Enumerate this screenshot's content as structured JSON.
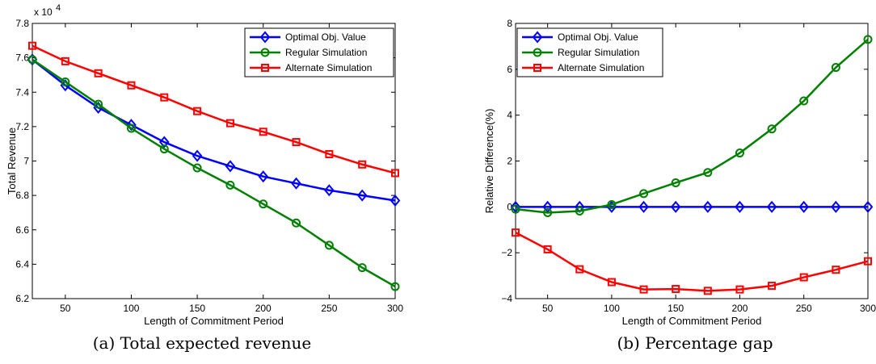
{
  "chart_data": [
    {
      "type": "line",
      "caption": "(a)  Total expected revenue",
      "xlabel": "Length of Commitment Period",
      "ylabel": "Total Revenue",
      "y_multiplier": "x 10",
      "y_multiplier_exp": "4",
      "xlim": [
        25,
        300
      ],
      "ylim": [
        6.2,
        7.8
      ],
      "xticks": [
        50,
        100,
        150,
        200,
        250,
        300
      ],
      "yticks": [
        6.2,
        6.4,
        6.6,
        6.8,
        7,
        7.2,
        7.4,
        7.6,
        7.8
      ],
      "ytick_labels": [
        "6.2",
        "6.4",
        "6.6",
        "6.8",
        "7",
        "7.2",
        "7.4",
        "7.6",
        "7.8"
      ],
      "grid": false,
      "legend_position": "top-right",
      "x": [
        25,
        50,
        75,
        100,
        125,
        150,
        175,
        200,
        225,
        250,
        275,
        300
      ],
      "series": [
        {
          "name": "Optimal Obj. Value",
          "color": "#0000ff",
          "marker": "diamond",
          "values": [
            7.59,
            7.44,
            7.31,
            7.21,
            7.11,
            7.03,
            6.97,
            6.91,
            6.87,
            6.83,
            6.8,
            6.77
          ]
        },
        {
          "name": "Regular Simulation",
          "color": "#008000",
          "marker": "circle",
          "values": [
            7.59,
            7.46,
            7.33,
            7.19,
            7.07,
            6.96,
            6.86,
            6.75,
            6.64,
            6.51,
            6.38,
            6.27
          ]
        },
        {
          "name": "Alternate Simulation",
          "color": "#ff0000",
          "marker": "square",
          "values": [
            7.67,
            7.58,
            7.51,
            7.44,
            7.37,
            7.29,
            7.22,
            7.17,
            7.11,
            7.04,
            6.98,
            6.93
          ]
        }
      ]
    },
    {
      "type": "line",
      "caption": "(b)  Percentage gap",
      "xlabel": "Length of Commitment Period",
      "ylabel": "Relative Difference(%)",
      "xlim": [
        25,
        300
      ],
      "ylim": [
        -4,
        8
      ],
      "xticks": [
        50,
        100,
        150,
        200,
        250,
        300
      ],
      "yticks": [
        -4,
        -2,
        0,
        2,
        4,
        6,
        8
      ],
      "ytick_labels": [
        "−4",
        "−2",
        "0",
        "2",
        "4",
        "6",
        "8"
      ],
      "grid": false,
      "legend_position": "top-left",
      "x": [
        25,
        50,
        75,
        100,
        125,
        150,
        175,
        200,
        225,
        250,
        275,
        300
      ],
      "series": [
        {
          "name": "Optimal Obj. Value",
          "color": "#0000ff",
          "marker": "diamond",
          "values": [
            0,
            0,
            0,
            0,
            0,
            0,
            0,
            0,
            0,
            0,
            0,
            0
          ]
        },
        {
          "name": "Regular Simulation",
          "color": "#008000",
          "marker": "circle",
          "values": [
            -0.1,
            -0.25,
            -0.18,
            0.1,
            0.58,
            1.05,
            1.5,
            2.35,
            3.4,
            4.62,
            6.08,
            7.3
          ]
        },
        {
          "name": "Alternate Simulation",
          "color": "#ff0000",
          "marker": "square",
          "values": [
            -1.12,
            -1.85,
            -2.72,
            -3.28,
            -3.6,
            -3.58,
            -3.66,
            -3.6,
            -3.44,
            -3.07,
            -2.74,
            -2.37
          ]
        }
      ]
    }
  ]
}
